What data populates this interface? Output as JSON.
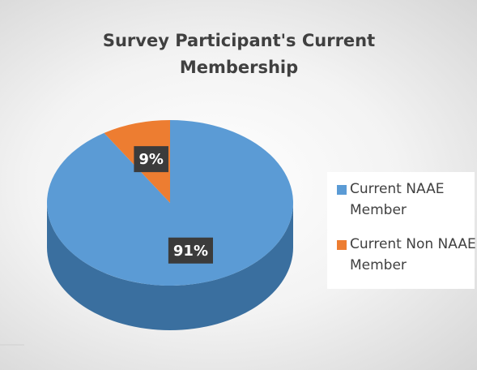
{
  "chart_data": {
    "type": "pie",
    "title": "Survey Participant's Current Membership",
    "categories": [
      "Current NAAE Member",
      "Current Non NAAE Member"
    ],
    "values": [
      91,
      9
    ],
    "value_labels": [
      "91%",
      "9%"
    ],
    "colors": [
      "#5b9bd5",
      "#ed7d31"
    ],
    "legend": "right"
  }
}
